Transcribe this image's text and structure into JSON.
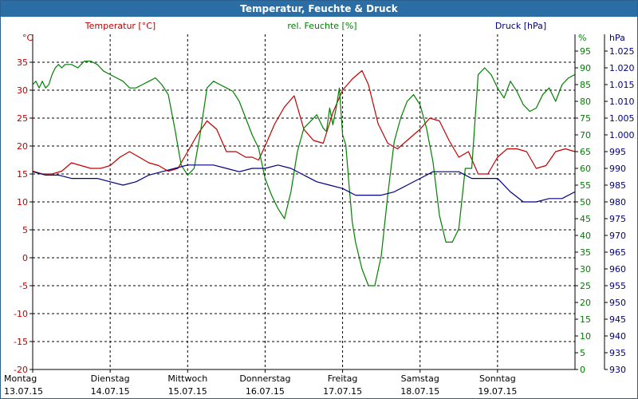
{
  "window": {
    "title": "Temperatur, Feuchte & Druck"
  },
  "chart_data": {
    "type": "line",
    "title": "Temperatur, Feuchte & Druck",
    "series_labels": {
      "temperature": "Temperatur [°C]",
      "humidity": "rel. Feuchte [%]",
      "pressure": "Druck [hPa]"
    },
    "axes": {
      "left": {
        "unit": "°C",
        "min": -20,
        "max": 40,
        "ticks": [
          "35",
          "30",
          "25",
          "20",
          "15",
          "10",
          "5",
          "0",
          "-5",
          "-10",
          "-15",
          "-20"
        ],
        "tick_values": [
          35,
          30,
          25,
          20,
          15,
          10,
          5,
          0,
          -5,
          -10,
          -15,
          -20
        ],
        "color": "#c00000"
      },
      "mid": {
        "unit": "%",
        "min": 0,
        "max": 100,
        "ticks": [
          "95",
          "90",
          "85",
          "80",
          "75",
          "70",
          "65",
          "60",
          "55",
          "50",
          "45",
          "40",
          "35",
          "30",
          "25",
          "20",
          "15",
          "10",
          "5",
          "0"
        ],
        "tick_values": [
          95,
          90,
          85,
          80,
          75,
          70,
          65,
          60,
          55,
          50,
          45,
          40,
          35,
          30,
          25,
          20,
          15,
          10,
          5,
          0
        ],
        "color": "#008000"
      },
      "right": {
        "unit": "hPa",
        "min": 930,
        "max": 1030,
        "ticks": [
          "1.025",
          "1.020",
          "1.015",
          "1.010",
          "1.005",
          "1.000",
          "995",
          "990",
          "985",
          "980",
          "975",
          "970",
          "965",
          "960",
          "955",
          "950",
          "945",
          "940",
          "935",
          "930"
        ],
        "tick_values": [
          1025,
          1020,
          1015,
          1010,
          1005,
          1000,
          995,
          990,
          985,
          980,
          975,
          970,
          965,
          960,
          955,
          950,
          945,
          940,
          935,
          930
        ],
        "color": "#000080"
      }
    },
    "x_axis": {
      "day_start_hours": [
        0,
        24,
        48,
        72,
        96,
        120,
        144
      ],
      "span_hours": 168,
      "labels": [
        {
          "day": "Montag",
          "date": "13.07.15"
        },
        {
          "day": "Dienstag",
          "date": "14.07.15"
        },
        {
          "day": "Mittwoch",
          "date": "15.07.15"
        },
        {
          "day": "Donnerstag",
          "date": "16.07.15"
        },
        {
          "day": "Freitag",
          "date": "17.07.15"
        },
        {
          "day": "Samstag",
          "date": "18.07.15"
        },
        {
          "day": "Sonntag",
          "date": "19.07.15"
        }
      ]
    },
    "grid": true,
    "series": [
      {
        "name": "Temperatur [°C]",
        "axis": "left",
        "color": "#c00000",
        "x": [
          0,
          3,
          6,
          9,
          12,
          15,
          18,
          21,
          24,
          27,
          30,
          33,
          36,
          39,
          42,
          45,
          48,
          51,
          54,
          57,
          60,
          63,
          66,
          68,
          70,
          72,
          75,
          78,
          81,
          84,
          87,
          90,
          93,
          96,
          99,
          102,
          104,
          107,
          110,
          113,
          116,
          118,
          120,
          123,
          126,
          129,
          132,
          135,
          138,
          141,
          144,
          147,
          150,
          153,
          156,
          159,
          162,
          165,
          168
        ],
        "y": [
          15.5,
          15,
          15,
          15.5,
          17,
          16.5,
          16,
          16,
          16.5,
          18,
          19,
          18,
          17,
          16.5,
          15.5,
          16,
          19,
          22,
          24.5,
          23,
          19,
          19,
          18,
          18,
          17.5,
          20,
          24,
          27,
          29,
          23,
          21,
          20.5,
          26,
          30,
          32,
          33.5,
          31,
          24,
          20.5,
          19.5,
          21,
          22,
          23,
          25,
          24.5,
          21,
          18,
          19,
          15,
          15,
          18,
          19.5,
          19.5,
          19,
          16,
          16.5,
          19,
          19.5,
          19
        ]
      },
      {
        "name": "rel. Feuchte [%]",
        "axis": "mid",
        "color": "#008000",
        "x": [
          0,
          1,
          2,
          3,
          4,
          5,
          6,
          7,
          8,
          9,
          10,
          11,
          12,
          14,
          15,
          16,
          18,
          20,
          22,
          24,
          26,
          28,
          29,
          30,
          32,
          34,
          36,
          38,
          40,
          42,
          44,
          46,
          48,
          50,
          52,
          54,
          56,
          58,
          60,
          62,
          64,
          66,
          68,
          70,
          72,
          74,
          76,
          78,
          80,
          82,
          84,
          86,
          88,
          90,
          91,
          92,
          93,
          94,
          95,
          96,
          97,
          98,
          99,
          100,
          102,
          104,
          106,
          108,
          110,
          112,
          114,
          116,
          118,
          120,
          122,
          124,
          126,
          128,
          130,
          132,
          134,
          136,
          138,
          140,
          142,
          144,
          146,
          148,
          150,
          152,
          154,
          156,
          158,
          160,
          162,
          164,
          166,
          168
        ],
        "y": [
          85,
          86,
          84,
          86,
          84,
          85,
          88,
          90,
          91,
          90,
          91,
          91,
          91,
          90,
          91,
          92,
          92,
          91,
          89,
          88,
          87,
          86,
          85,
          84,
          84,
          85,
          86,
          87,
          85,
          82,
          72,
          61,
          58,
          60,
          71,
          84,
          86,
          85,
          84,
          83,
          80,
          75,
          70,
          66,
          57,
          52,
          48,
          45,
          53,
          65,
          72,
          74,
          76,
          72,
          71,
          78,
          73,
          78,
          84,
          70,
          67,
          55,
          44,
          38,
          30,
          25,
          25,
          34,
          52,
          68,
          75,
          80,
          82,
          79,
          72,
          62,
          46,
          38,
          38,
          42,
          60,
          60,
          88,
          90,
          88,
          84,
          81,
          86,
          83,
          79,
          77,
          78,
          82,
          84,
          80,
          85,
          87,
          88
        ]
      },
      {
        "name": "Druck [hPa]",
        "axis": "right",
        "color": "#000080",
        "x": [
          0,
          4,
          8,
          12,
          16,
          20,
          24,
          28,
          32,
          36,
          40,
          44,
          48,
          52,
          56,
          60,
          64,
          68,
          72,
          76,
          80,
          84,
          88,
          92,
          96,
          100,
          104,
          108,
          112,
          116,
          120,
          124,
          128,
          132,
          136,
          140,
          144,
          148,
          152,
          156,
          160,
          164,
          168
        ],
        "y": [
          989,
          988,
          988,
          987,
          987,
          987,
          986,
          985,
          986,
          988,
          989,
          990,
          991,
          991,
          991,
          990,
          989,
          990,
          990,
          991,
          990,
          988,
          986,
          985,
          984,
          982,
          982,
          982,
          983,
          985,
          987,
          989,
          989,
          989,
          987,
          987,
          987,
          983,
          980,
          980,
          981,
          981,
          983
        ]
      }
    ]
  }
}
